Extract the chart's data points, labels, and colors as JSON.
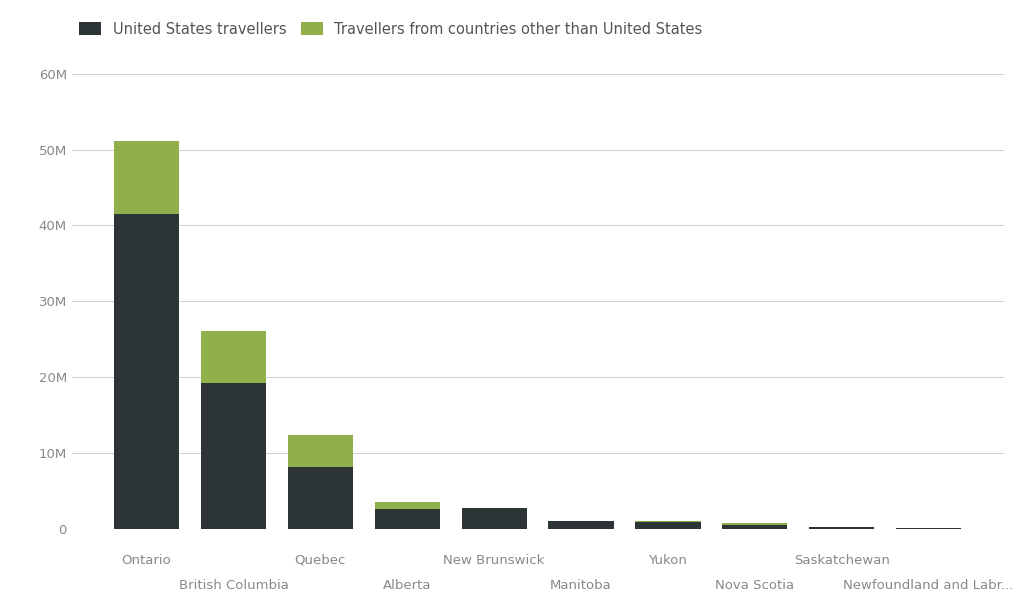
{
  "categories": [
    "Ontario",
    "British Columbia",
    "Quebec",
    "Alberta",
    "New Brunswick",
    "Manitoba",
    "Yukon",
    "Nova Scotia",
    "Saskatchewan",
    "Newfoundland and Labr..."
  ],
  "us_travellers": [
    41500000,
    19200000,
    8200000,
    2600000,
    2700000,
    1000000,
    950000,
    500000,
    200000,
    80000
  ],
  "other_travellers": [
    9700000,
    6900000,
    4200000,
    1000000,
    100000,
    50000,
    100000,
    250000,
    50000,
    80000
  ],
  "color_us": "#2d3436",
  "color_other": "#8fb04a",
  "background_color": "#ffffff",
  "grid_color": "#d0d0d0",
  "legend_us": "United States travellers",
  "legend_other": "Travellers from countries other than United States",
  "ylim": [
    0,
    60000000
  ],
  "yticks": [
    0,
    10000000,
    20000000,
    30000000,
    40000000,
    50000000,
    60000000
  ],
  "ytick_labels": [
    "0",
    "10M",
    "20M",
    "30M",
    "40M",
    "50M",
    "60M"
  ],
  "bar_width": 0.75,
  "font_color": "#555555",
  "legend_fontsize": 10.5,
  "tick_fontsize": 9.5,
  "label_color": "#888888"
}
